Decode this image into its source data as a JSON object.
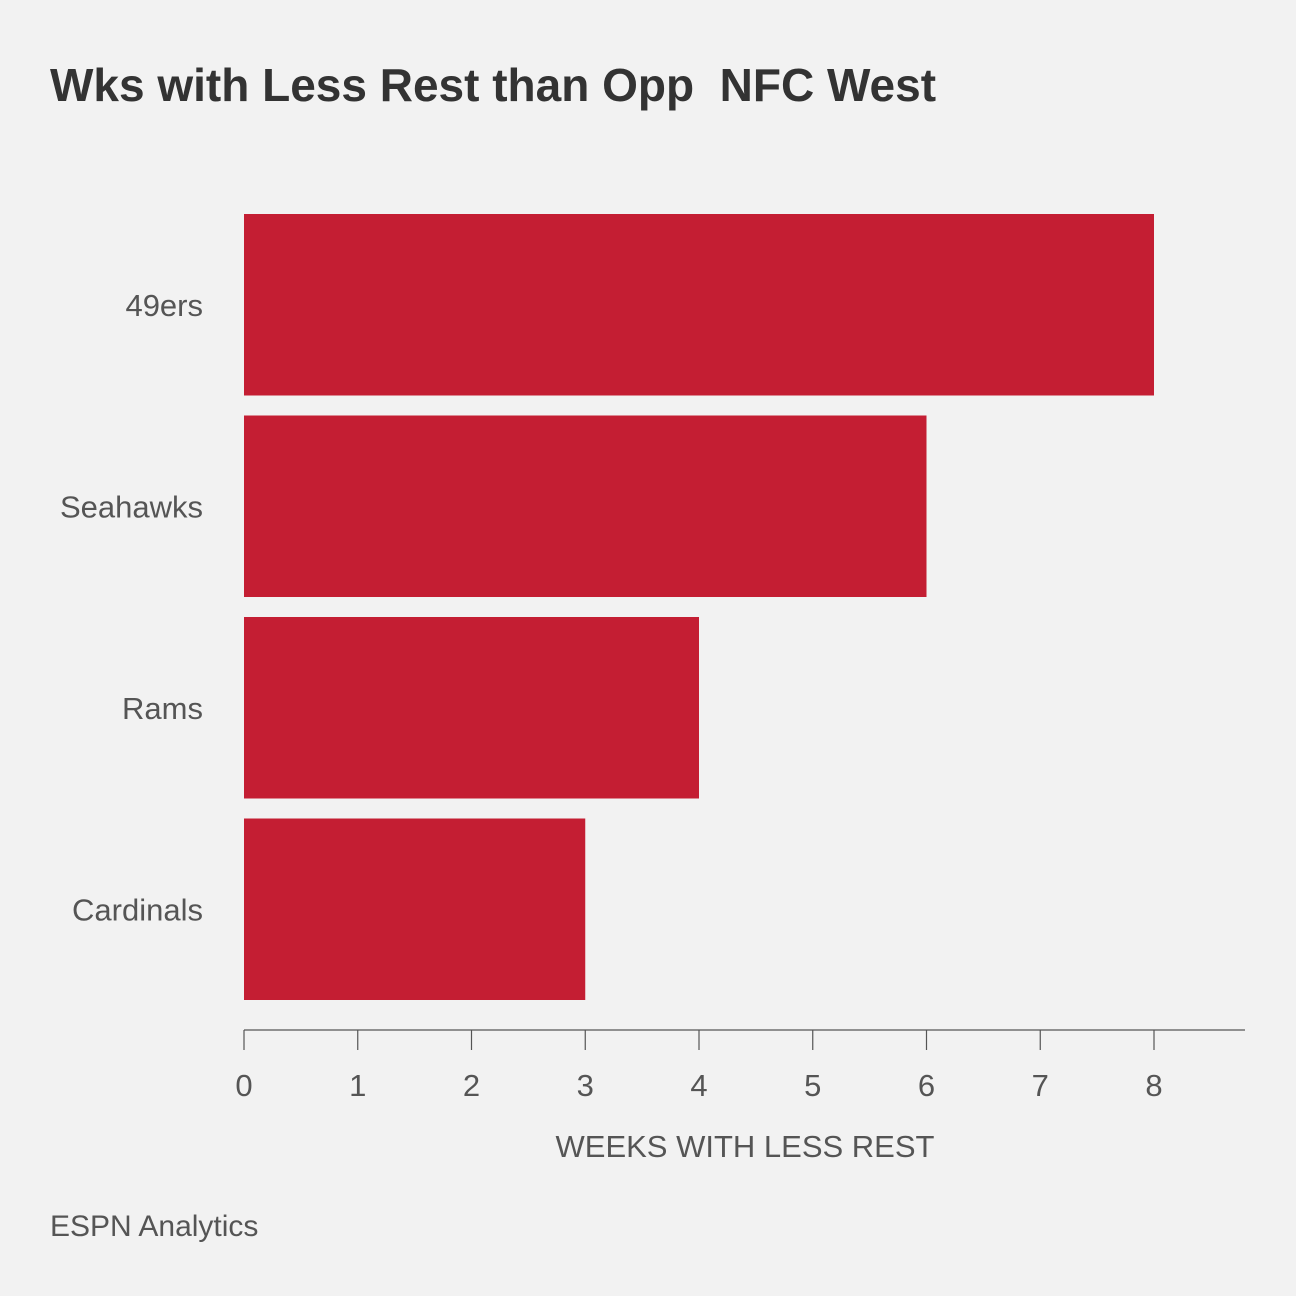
{
  "chart_data": {
    "type": "bar",
    "orientation": "horizontal",
    "title": "Wks with Less Rest than Opp  NFC West",
    "categories": [
      "49ers",
      "Seahawks",
      "Rams",
      "Cardinals"
    ],
    "values": [
      8,
      6,
      4,
      3
    ],
    "xlabel": "WEEKS WITH LESS REST",
    "ylabel": "",
    "xlim": [
      0,
      8.8
    ],
    "xticks": [
      "0",
      "1",
      "2",
      "3",
      "4",
      "5",
      "6",
      "7",
      "8"
    ],
    "grid": false,
    "legend": "none"
  },
  "colors": {
    "background": "#f2f2f2",
    "bar": "#c41e33",
    "title": "#333333",
    "label": "#555555",
    "axis": "#555555"
  },
  "source": "ESPN Analytics"
}
